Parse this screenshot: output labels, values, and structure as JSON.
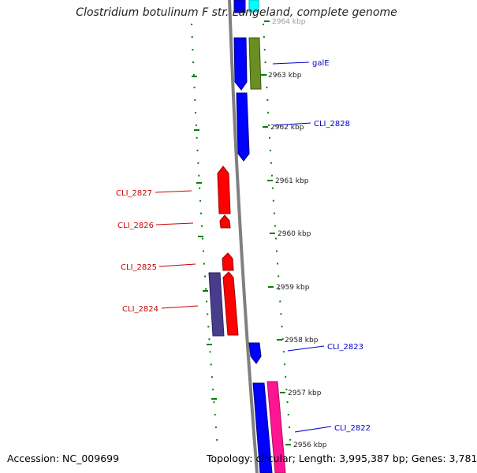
{
  "title": "Clostridium botulinum F str. Langeland, complete genome",
  "footer": {
    "accession": "Accession: NC_009699",
    "summary": "Topology: circular; Length: 3,995,387 bp; Genes: 3,781"
  },
  "colors": {
    "backbone": "#808080",
    "forward_cds": "#0000ff",
    "reverse_cds": "#ff0000",
    "cog_olive": "#6b8e23",
    "cog_purple": "#483d8b",
    "cog_magenta": "#ff1493",
    "cog_cyan": "#00ffff",
    "tick": "#008000",
    "label_forward": "#0000cc",
    "label_reverse": "#cc0000"
  },
  "scale": {
    "unit": "kbp",
    "ticks": [
      {
        "kbp": 2964,
        "label": "2964 kbp"
      },
      {
        "kbp": 2963,
        "label": "2963 kbp"
      },
      {
        "kbp": 2962,
        "label": "2962 kbp"
      },
      {
        "kbp": 2961,
        "label": "2961 kbp"
      },
      {
        "kbp": 2960,
        "label": "2960 kbp"
      },
      {
        "kbp": 2959,
        "label": "2959 kbp"
      },
      {
        "kbp": 2958,
        "label": "2958 kbp"
      },
      {
        "kbp": 2957,
        "label": "2957 kbp"
      },
      {
        "kbp": 2956,
        "label": "2956 kbp"
      }
    ]
  },
  "gene_labels": [
    {
      "name": "galE",
      "strand": "forward"
    },
    {
      "name": "CLI_2828",
      "strand": "forward"
    },
    {
      "name": "CLI_2827",
      "strand": "reverse"
    },
    {
      "name": "CLI_2826",
      "strand": "reverse"
    },
    {
      "name": "CLI_2825",
      "strand": "reverse"
    },
    {
      "name": "CLI_2824",
      "strand": "reverse"
    },
    {
      "name": "CLI_2823",
      "strand": "forward"
    },
    {
      "name": "CLI_2822",
      "strand": "forward"
    }
  ]
}
